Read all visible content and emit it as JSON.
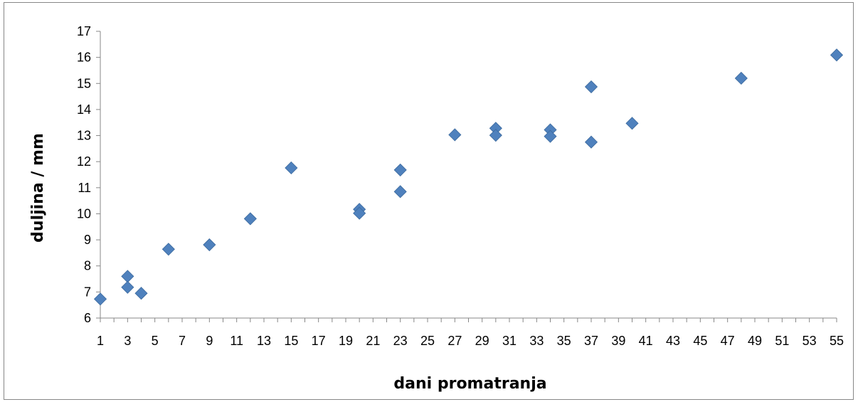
{
  "chart_data": {
    "type": "scatter",
    "title": "",
    "xlabel": "dani promatranja",
    "ylabel": "duljina / mm",
    "xlim": [
      1,
      55
    ],
    "ylim": [
      6,
      17
    ],
    "x_ticks": [
      1,
      3,
      5,
      7,
      9,
      11,
      13,
      15,
      17,
      19,
      21,
      23,
      25,
      27,
      29,
      31,
      33,
      35,
      37,
      39,
      41,
      43,
      45,
      47,
      49,
      51,
      53,
      55
    ],
    "y_ticks": [
      6,
      7,
      8,
      9,
      10,
      11,
      12,
      13,
      14,
      15,
      16,
      17
    ],
    "grid": false,
    "legend": "none",
    "marker": "diamond",
    "marker_color": "#4F81BD",
    "axis_color": "#878787",
    "series": [
      {
        "points": [
          [
            1,
            6.73
          ],
          [
            3,
            7.6
          ],
          [
            3,
            7.18
          ],
          [
            4,
            6.95
          ],
          [
            6,
            8.64
          ],
          [
            9,
            8.81
          ],
          [
            12,
            9.81
          ],
          [
            15,
            11.76
          ],
          [
            20,
            10.17
          ],
          [
            20,
            10.02
          ],
          [
            23,
            11.68
          ],
          [
            23,
            10.85
          ],
          [
            27,
            13.03
          ],
          [
            30,
            13.28
          ],
          [
            30,
            13.01
          ],
          [
            34,
            13.22
          ],
          [
            34,
            12.97
          ],
          [
            37,
            14.87
          ],
          [
            37,
            12.75
          ],
          [
            40,
            13.47
          ],
          [
            48,
            15.2
          ],
          [
            55,
            16.09
          ]
        ]
      }
    ]
  }
}
